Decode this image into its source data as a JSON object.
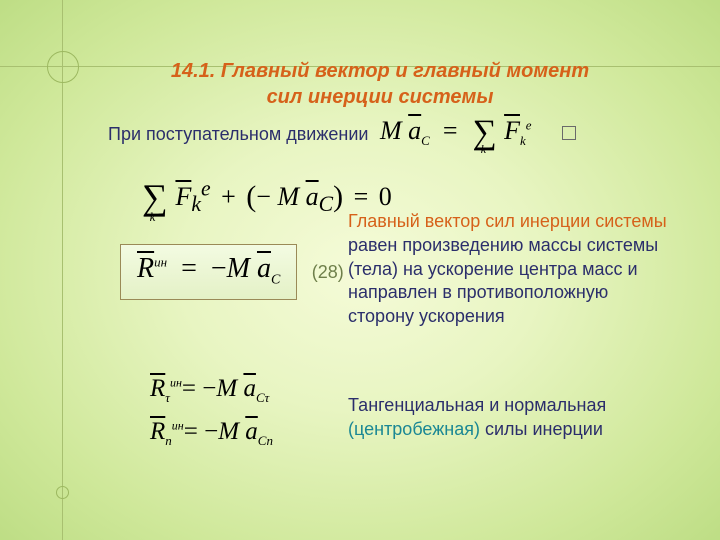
{
  "colors": {
    "accent_orange": "#d6611a",
    "accent_teal": "#1a8794",
    "body_text": "#2b2e6b",
    "eqnum": "#6e7f4a"
  },
  "title": {
    "line1": "14.1. Главный вектор и главный момент",
    "line2": "сил инерции системы"
  },
  "subtitle": "При поступательном движении",
  "eq_num": "(28)",
  "para1": {
    "highlight": "Главный вектор сил инерции системы",
    "rest": " равен произведению массы системы (тела) на ускорение центра масс и направлен в противоположную сторону ускорения"
  },
  "para2": {
    "pre": "Тангенциальная и нормальная ",
    "highlight": "(центробежная)",
    "post": " силы инерции"
  },
  "math": {
    "M": "M",
    "aC": "a",
    "aC_sub": "C",
    "eq": "=",
    "plus": "+",
    "minus": "−",
    "zero": "0",
    "F": "F",
    "F_sub": "k",
    "F_sup": "e",
    "R": "R",
    "R_sup": "ин",
    "tau": "τ",
    "n": "n",
    "aCtau_sub": "Cτ",
    "aCn_sub": "Cn"
  }
}
